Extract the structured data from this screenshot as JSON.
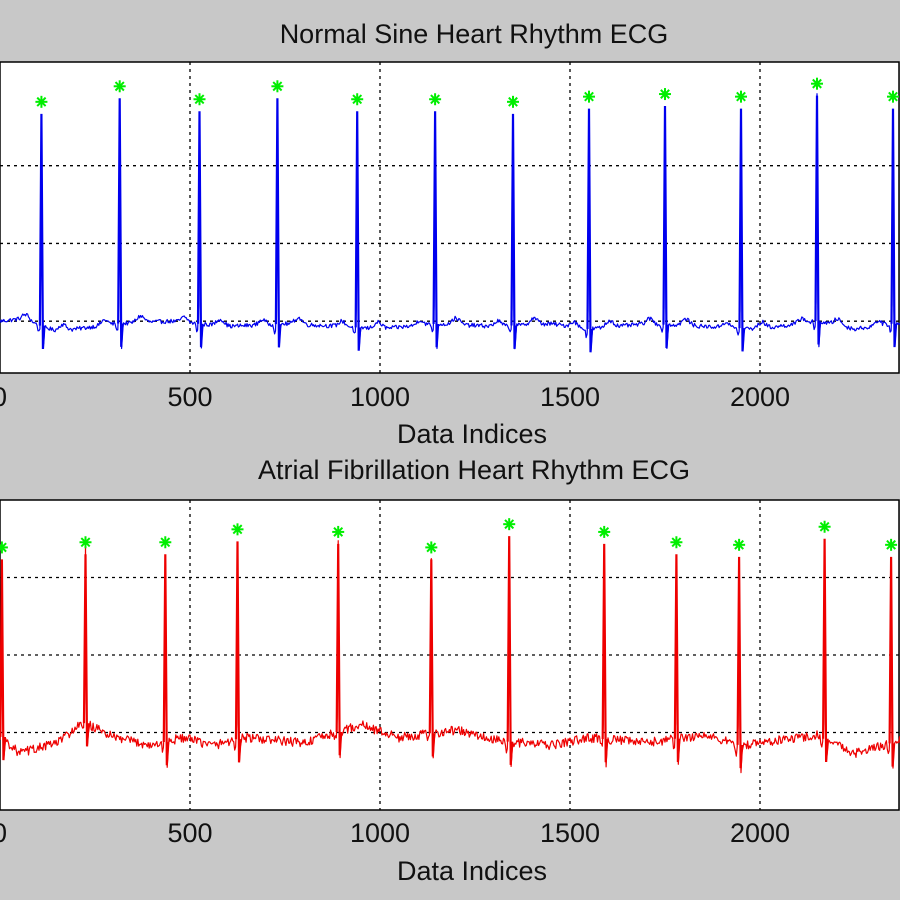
{
  "colors": {
    "figure_background": "#c8c8c8",
    "axes_background": "#ffffff",
    "grid": "#000000",
    "peak_marker": "#00ee00"
  },
  "chart_data": [
    {
      "type": "line",
      "title": "Normal Sine Heart Rhythm ECG",
      "xlabel": "Data Indices",
      "ylabel": "",
      "xlim": [
        0,
        2400
      ],
      "ylim": [
        -0.2,
        1.0
      ],
      "x_ticks": [
        0,
        500,
        1000,
        1500,
        2000
      ],
      "x_tick_labels": [
        "0",
        "500",
        "1000",
        "1500",
        "2000"
      ],
      "y_gridlines": [
        0.0,
        0.3,
        0.6
      ],
      "grid": true,
      "series": [
        {
          "color": "#0000ee",
          "baseline": 0.0,
          "baseline_drift": [
            [
              0,
              0.0
            ],
            [
              60,
              0.01
            ],
            [
              150,
              -0.04
            ],
            [
              300,
              -0.01
            ],
            [
              450,
              0.0
            ],
            [
              600,
              -0.02
            ],
            [
              750,
              -0.01
            ],
            [
              900,
              -0.02
            ],
            [
              1000,
              -0.03
            ],
            [
              1150,
              -0.01
            ],
            [
              1300,
              -0.02
            ],
            [
              1450,
              -0.01
            ],
            [
              1550,
              -0.03
            ],
            [
              1700,
              -0.01
            ],
            [
              1850,
              -0.02
            ],
            [
              2000,
              -0.03
            ],
            [
              2150,
              0.0
            ],
            [
              2250,
              -0.03
            ],
            [
              2400,
              0.0
            ]
          ],
          "peaks_x": [
            109,
            315,
            525,
            730,
            940,
            1145,
            1350,
            1550,
            1750,
            1950,
            2150,
            2350
          ],
          "peaks_y": [
            0.8,
            0.86,
            0.81,
            0.86,
            0.81,
            0.81,
            0.8,
            0.82,
            0.83,
            0.82,
            0.87,
            0.82
          ]
        }
      ]
    },
    {
      "type": "line",
      "title": "Atrial Fibrillation Heart Rhythm ECG",
      "xlabel": "Data Indices",
      "ylabel": "",
      "xlim": [
        0,
        2400
      ],
      "ylim": [
        -0.3,
        0.9
      ],
      "x_ticks": [
        0,
        500,
        1000,
        1500,
        2000
      ],
      "x_tick_labels": [
        "0",
        "500",
        "1000",
        "1500",
        "2000"
      ],
      "y_gridlines": [
        0.0,
        0.3,
        0.6
      ],
      "grid": true,
      "series": [
        {
          "color": "#ee0000",
          "baseline": 0.0,
          "baseline_drift": [
            [
              0,
              -0.01
            ],
            [
              50,
              -0.08
            ],
            [
              150,
              -0.04
            ],
            [
              220,
              0.04
            ],
            [
              300,
              -0.02
            ],
            [
              400,
              -0.05
            ],
            [
              480,
              -0.02
            ],
            [
              560,
              -0.05
            ],
            [
              640,
              -0.02
            ],
            [
              800,
              -0.04
            ],
            [
              950,
              0.03
            ],
            [
              1050,
              -0.02
            ],
            [
              1200,
              0.01
            ],
            [
              1300,
              -0.03
            ],
            [
              1450,
              -0.05
            ],
            [
              1550,
              -0.02
            ],
            [
              1700,
              -0.04
            ],
            [
              1850,
              -0.01
            ],
            [
              1950,
              -0.05
            ],
            [
              2050,
              -0.03
            ],
            [
              2150,
              -0.01
            ],
            [
              2250,
              -0.08
            ],
            [
              2400,
              -0.02
            ]
          ],
          "peaks_x": [
            5,
            225,
            435,
            625,
            890,
            1135,
            1340,
            1590,
            1780,
            1945,
            2170,
            2345
          ],
          "peaks_y": [
            0.67,
            0.69,
            0.69,
            0.74,
            0.73,
            0.67,
            0.76,
            0.73,
            0.69,
            0.68,
            0.75,
            0.68
          ]
        }
      ]
    }
  ]
}
